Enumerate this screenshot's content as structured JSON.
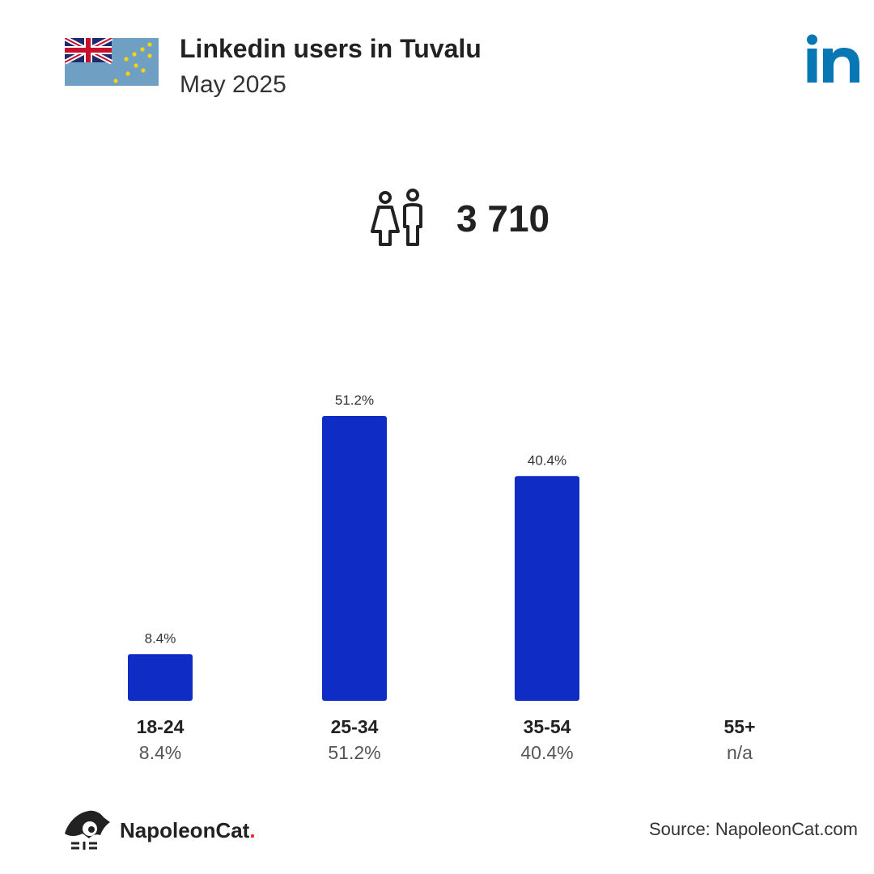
{
  "header": {
    "title": "Linkedin users in Tuvalu",
    "subtitle": "May 2025"
  },
  "icons": {
    "flag": "tuvalu-flag-icon",
    "platform": "linkedin-logo-icon",
    "users": "users-icon",
    "brand": "napoleoncat-logo-icon"
  },
  "stats": {
    "total_users": "3 710"
  },
  "colors": {
    "bar": "#0f2cc5",
    "linkedin": "#0a77b5",
    "flag_blue": "#6f9fc2",
    "brand_dot": "#e0262b"
  },
  "chart_data": {
    "type": "bar",
    "categories": [
      "18-24",
      "25-34",
      "35-54",
      "55+"
    ],
    "values": [
      8.4,
      51.2,
      40.4,
      null
    ],
    "value_labels": [
      "8.4%",
      "51.2%",
      "40.4%",
      "n/a"
    ],
    "title": "",
    "xlabel": "",
    "ylabel": "",
    "ylim": [
      0,
      51.2
    ],
    "grid": false,
    "legend": "none"
  },
  "footer": {
    "brand": "NapoleonCat",
    "brand_dot": ".",
    "source": "Source: NapoleonCat.com"
  }
}
